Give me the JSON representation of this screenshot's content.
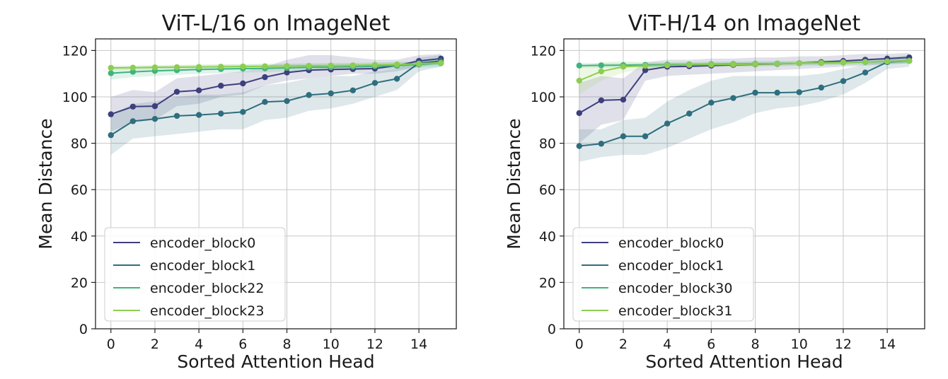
{
  "chart_data": [
    {
      "type": "line",
      "title": "ViT-L/16 on ImageNet",
      "xlabel": "Sorted Attention Head",
      "ylabel": "Mean Distance",
      "xlim": [
        -0.7,
        15.7
      ],
      "ylim": [
        0,
        125
      ],
      "xticks": [
        0,
        2,
        4,
        6,
        8,
        10,
        12,
        14
      ],
      "yticks": [
        0,
        20,
        40,
        60,
        80,
        100,
        120
      ],
      "grid": true,
      "legend_position": "lower-left",
      "x": [
        0,
        1,
        2,
        3,
        4,
        5,
        6,
        7,
        8,
        9,
        10,
        11,
        12,
        13,
        14,
        15
      ],
      "series": [
        {
          "name": "encoder_block0",
          "color": "#3e3f7d",
          "values": [
            92.5,
            95.8,
            96,
            102.2,
            102.8,
            104.8,
            105.8,
            108.5,
            110.5,
            111.5,
            111.8,
            112,
            112.2,
            113.5,
            115.5,
            116.5
          ],
          "band_lower": [
            85,
            89,
            90,
            96,
            97,
            100,
            101,
            105,
            107,
            108,
            109,
            110,
            110,
            111,
            113,
            114.5
          ],
          "band_upper": [
            100,
            103,
            102,
            108,
            109,
            110,
            111,
            113,
            116,
            118,
            118,
            117,
            116,
            116,
            118,
            118.5
          ]
        },
        {
          "name": "encoder_block1",
          "color": "#2f6e7e",
          "values": [
            83.5,
            89.5,
            90.5,
            91.8,
            92.2,
            92.8,
            93.5,
            97.8,
            98.2,
            100.8,
            101.5,
            102.8,
            106,
            107.8,
            114.5,
            115.5
          ],
          "band_lower": [
            75,
            82,
            83,
            84,
            85,
            86,
            86,
            90,
            91,
            94,
            95,
            97,
            100,
            103,
            111,
            113
          ],
          "band_upper": [
            92,
            97,
            98,
            100,
            101,
            101,
            102,
            105,
            106,
            108,
            109,
            109,
            111,
            112,
            117,
            118
          ]
        },
        {
          "name": "encoder_block22",
          "color": "#3fb37f",
          "values": [
            110.2,
            110.8,
            111.2,
            111.5,
            111.8,
            112,
            112.2,
            112.3,
            112.5,
            112.7,
            112.8,
            113,
            113.2,
            113.5,
            114,
            114.5
          ],
          "band_lower": [
            107.5,
            108.5,
            109,
            109.5,
            110,
            110.2,
            110.5,
            110.7,
            111,
            111.2,
            111.3,
            111.5,
            111.7,
            112,
            112.5,
            113
          ],
          "band_upper": [
            113,
            113.2,
            113.4,
            113.6,
            113.8,
            114,
            114,
            114.2,
            114.3,
            114.4,
            114.5,
            114.6,
            114.8,
            115,
            115.5,
            116
          ]
        },
        {
          "name": "encoder_block23",
          "color": "#8ccd52",
          "values": [
            112.5,
            112.6,
            112.7,
            112.8,
            112.9,
            113,
            113.1,
            113.2,
            113.3,
            113.4,
            113.5,
            113.6,
            113.8,
            114,
            114.3,
            114.7
          ],
          "band_lower": [
            111.5,
            111.6,
            111.7,
            111.8,
            111.9,
            112,
            112.1,
            112.2,
            112.3,
            112.4,
            112.5,
            112.6,
            112.8,
            113,
            113.3,
            113.7
          ],
          "band_upper": [
            113.5,
            113.6,
            113.7,
            113.8,
            113.9,
            114,
            114.1,
            114.2,
            114.3,
            114.4,
            114.5,
            114.6,
            114.8,
            115,
            115.3,
            115.7
          ]
        }
      ]
    },
    {
      "type": "line",
      "title": "ViT-H/14 on ImageNet",
      "xlabel": "Sorted Attention Head",
      "ylabel": "Mean Distance",
      "xlim": [
        -0.7,
        15.7
      ],
      "ylim": [
        0,
        125
      ],
      "xticks": [
        0,
        2,
        4,
        6,
        8,
        10,
        12,
        14
      ],
      "yticks": [
        0,
        20,
        40,
        60,
        80,
        100,
        120
      ],
      "grid": true,
      "legend_position": "lower-left",
      "x": [
        0,
        1,
        2,
        3,
        4,
        5,
        6,
        7,
        8,
        9,
        10,
        11,
        12,
        13,
        14,
        15
      ],
      "series": [
        {
          "name": "encoder_block0",
          "color": "#3e3f7d",
          "values": [
            93,
            98.5,
            98.8,
            111.5,
            113,
            113.2,
            113.5,
            113.8,
            114,
            114.2,
            114.5,
            115,
            115.5,
            116,
            116.5,
            117
          ],
          "band_lower": [
            80,
            88,
            90,
            107,
            109,
            109.5,
            110,
            110.5,
            111,
            111.5,
            112,
            112.5,
            113,
            113.5,
            114,
            114.5
          ],
          "band_upper": [
            106,
            109,
            108,
            115,
            116,
            116,
            116.5,
            116.5,
            117,
            117,
            117.5,
            117.5,
            118,
            118.5,
            118.5,
            119
          ]
        },
        {
          "name": "encoder_block1",
          "color": "#2f6e7e",
          "values": [
            78.8,
            79.8,
            83,
            83,
            88.5,
            92.8,
            97.5,
            99.5,
            101.8,
            101.8,
            102,
            104,
            106.8,
            110.5,
            115,
            115.5
          ],
          "band_lower": [
            72,
            74,
            75,
            75,
            78,
            82,
            86,
            89,
            93,
            95,
            96,
            98,
            101,
            106,
            112,
            113
          ],
          "band_upper": [
            86,
            86,
            90,
            91,
            98,
            103,
            107,
            109,
            109,
            109,
            109,
            110,
            112,
            114,
            117,
            118
          ]
        },
        {
          "name": "encoder_block30",
          "color": "#3fb37f",
          "values": [
            113.5,
            113.6,
            113.7,
            113.8,
            113.9,
            114,
            114.1,
            114.2,
            114.3,
            114.4,
            114.5,
            114.6,
            114.8,
            115,
            115.3,
            115.6
          ],
          "band_lower": [
            112.5,
            112.6,
            112.7,
            112.8,
            112.9,
            113,
            113.1,
            113.2,
            113.3,
            113.4,
            113.5,
            113.6,
            113.8,
            114,
            114.3,
            114.6
          ],
          "band_upper": [
            114.5,
            114.6,
            114.7,
            114.8,
            114.9,
            115,
            115.1,
            115.2,
            115.3,
            115.4,
            115.5,
            115.6,
            115.8,
            116,
            116.3,
            116.6
          ]
        },
        {
          "name": "encoder_block31",
          "color": "#8ccd52",
          "values": [
            107,
            111,
            113,
            113.4,
            113.6,
            113.8,
            113.9,
            114,
            114.1,
            114.3,
            114.5,
            114.7,
            114.9,
            115.1,
            115.3,
            115.5
          ],
          "band_lower": [
            101,
            107,
            110.5,
            112,
            112.3,
            112.5,
            112.7,
            112.9,
            113,
            113.2,
            113.4,
            113.6,
            113.8,
            114,
            114.2,
            114.4
          ],
          "band_upper": [
            113,
            115,
            115.5,
            114.8,
            114.9,
            115.1,
            115.1,
            115.1,
            115.2,
            115.4,
            115.6,
            115.8,
            116,
            116.2,
            116.4,
            116.6
          ]
        }
      ]
    }
  ]
}
